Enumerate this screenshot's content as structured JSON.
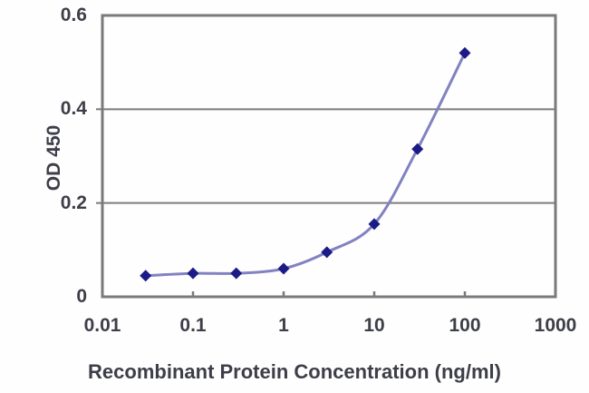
{
  "figure": {
    "background": "#fefefe",
    "frame_color": "#7a7a7a",
    "gridline_color": "#7d7d7d",
    "tick_color": "#6f6f6f",
    "line_color": "#8282c2",
    "marker_color": "#1b1b88",
    "text_color": "#3d3e48"
  },
  "chart_data": {
    "type": "line",
    "title": "",
    "xlabel": "Recombinant Protein Concentration (ng/ml)",
    "ylabel": "OD 450",
    "x_scale": "log",
    "xlim": [
      0.01,
      1000
    ],
    "ylim": [
      0,
      0.6
    ],
    "x_tick_values": [
      0.01,
      0.1,
      1,
      10,
      100,
      1000
    ],
    "x_tick_labels": [
      "0.01",
      "0.1",
      "1",
      "10",
      "100",
      "1000"
    ],
    "y_tick_values": [
      0,
      0.2,
      0.4,
      0.6
    ],
    "y_tick_labels": [
      "0",
      "0.2",
      "0.4",
      "0.6"
    ],
    "grid": "horizontal",
    "legend": "none",
    "series": [
      {
        "name": "OD 450",
        "marker": "diamond",
        "x": [
          0.03,
          0.1,
          0.3,
          1,
          3,
          10,
          30,
          100
        ],
        "y": [
          0.045,
          0.05,
          0.05,
          0.06,
          0.095,
          0.155,
          0.315,
          0.52
        ]
      }
    ]
  }
}
